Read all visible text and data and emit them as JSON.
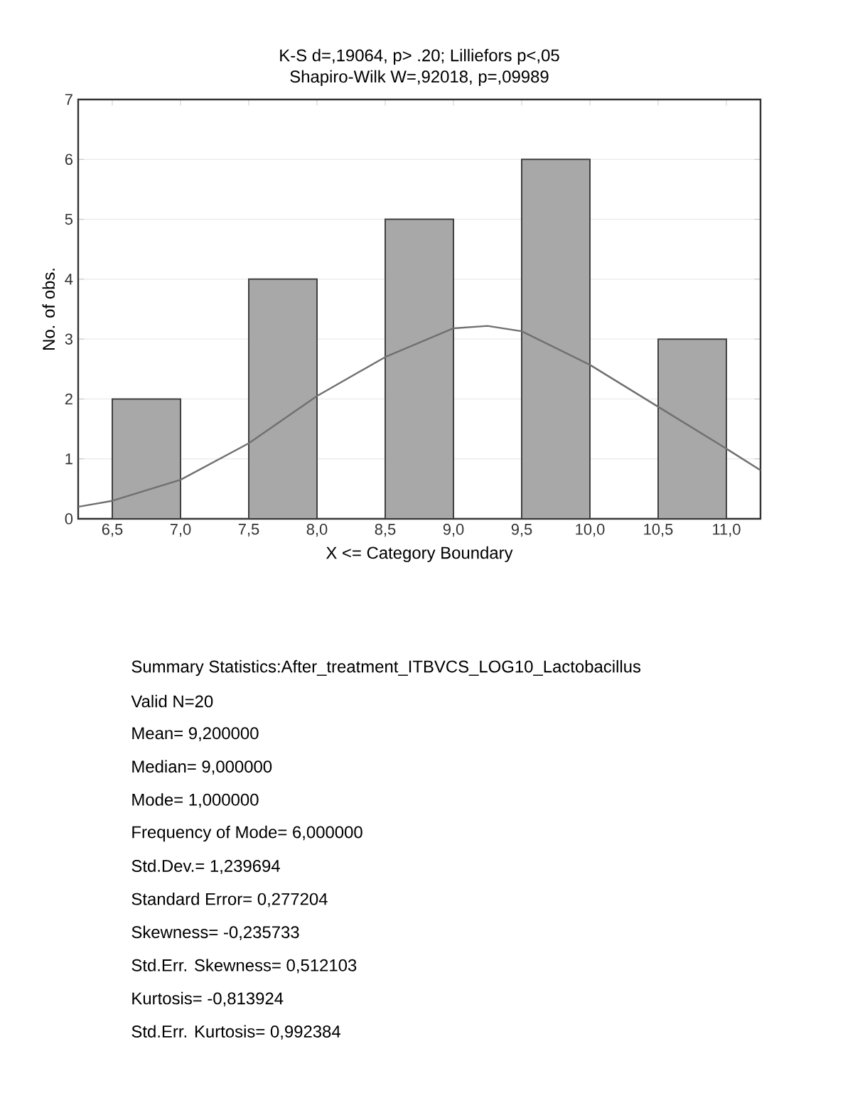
{
  "chart_data": {
    "type": "histogram",
    "title": "K-S d=,19064, p> .20; Lilliefors p<,05",
    "subtitle": "Shapiro-Wilk W=,92018, p=,09989",
    "xlabel": "X <= Category Boundary",
    "ylabel": "No. of obs.",
    "bins": [
      6.5,
      7.0,
      7.5,
      8.0,
      8.5,
      9.0,
      9.5,
      10.0,
      10.5,
      11.0
    ],
    "values": [
      2,
      0,
      4,
      0,
      5,
      0,
      6,
      0,
      3
    ],
    "color": "#a8a8a8",
    "series": [
      {
        "type": "line",
        "color": "#707070",
        "x": [
          6.25,
          6.5,
          7.0,
          7.5,
          8.0,
          8.5,
          9.0,
          9.25,
          9.5,
          10.0,
          10.5,
          11.0,
          11.25
        ],
        "values": [
          0.2,
          0.3,
          0.65,
          1.26,
          2.05,
          2.7,
          3.18,
          3.22,
          3.13,
          2.57,
          1.87,
          1.17,
          0.81
        ]
      }
    ],
    "xlim": [
      6.25,
      11.25
    ],
    "ylim": [
      0,
      7
    ],
    "xticks": [
      {
        "value": 6.5,
        "label": "6,5"
      },
      {
        "value": 7.0,
        "label": "7,0"
      },
      {
        "value": 7.5,
        "label": "7,5"
      },
      {
        "value": 8.0,
        "label": "8,0"
      },
      {
        "value": 8.5,
        "label": "8,5"
      },
      {
        "value": 9.0,
        "label": "9,0"
      },
      {
        "value": 9.5,
        "label": "9,5"
      },
      {
        "value": 10.0,
        "label": "10,0"
      },
      {
        "value": 10.5,
        "label": "10,5"
      },
      {
        "value": 11.0,
        "label": "11,0"
      }
    ],
    "yticks": [
      0,
      1,
      2,
      3,
      4,
      5,
      6,
      7
    ],
    "grid": "y",
    "annotations": [
      "Summary Statistics:After_treatment_ITBVCS_LOG10_Lactobacillus",
      "Valid N=20",
      "Mean= 9,200000",
      "Median= 9,000000",
      "Mode= 1,000000",
      "Frequency of Mode= 6,000000",
      "Std.Dev.= 1,239694",
      "Standard Error= 0,277204",
      "Skewness= -0,235733",
      "Std.Err. Skewness= 0,512103",
      "Kurtosis= -0,813924",
      "Std.Err. Kurtosis= 0,992384"
    ]
  }
}
